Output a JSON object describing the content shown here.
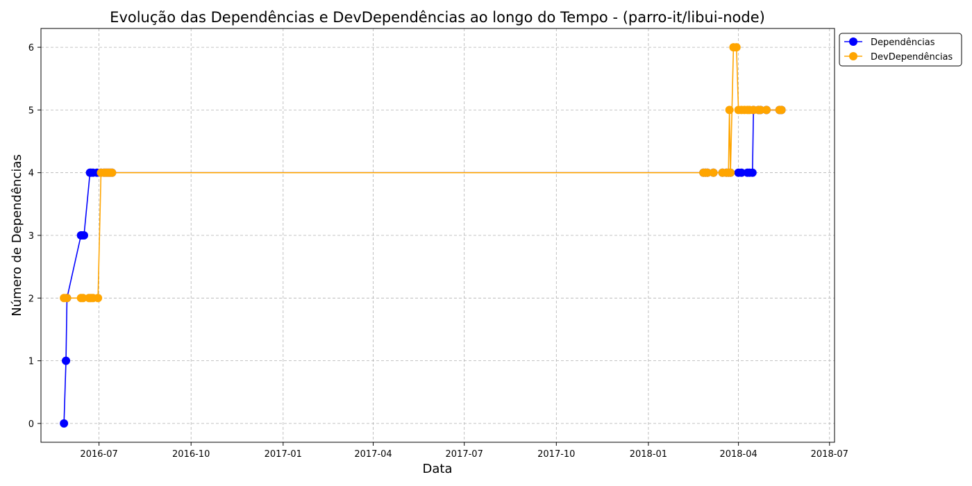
{
  "chart_data": {
    "type": "line",
    "title": "Evolução das Dependências e DevDependências ao longo do Tempo - (parro-it/libui-node)",
    "xlabel": "Data",
    "ylabel": "Número de Dependências",
    "grid": true,
    "legend_position": "top-right-outside",
    "xlim": [
      "2016-05-04",
      "2018-07-06"
    ],
    "ylim": [
      -0.3,
      6.3
    ],
    "x_ticks": [
      "2016-07",
      "2016-10",
      "2017-01",
      "2017-04",
      "2017-07",
      "2017-10",
      "2018-01",
      "2018-04",
      "2018-07"
    ],
    "y_ticks": [
      0,
      1,
      2,
      3,
      4,
      5,
      6
    ],
    "series": [
      {
        "name": "Dependências",
        "color": "#0000ff",
        "points": [
          [
            "2016-05-27",
            0
          ],
          [
            "2016-05-29",
            1
          ],
          [
            "2016-05-30",
            2
          ],
          [
            "2016-06-13",
            3
          ],
          [
            "2016-06-14",
            3
          ],
          [
            "2016-06-16",
            3
          ],
          [
            "2016-06-22",
            4
          ],
          [
            "2016-06-23",
            4
          ],
          [
            "2016-06-25",
            4
          ],
          [
            "2016-06-29",
            4
          ],
          [
            "2016-07-03",
            4
          ],
          [
            "2016-07-06",
            4
          ],
          [
            "2016-07-08",
            4
          ],
          [
            "2016-07-10",
            4
          ],
          [
            "2016-07-12",
            4
          ],
          [
            "2016-07-14",
            4
          ],
          [
            "2018-02-25",
            4
          ],
          [
            "2018-02-27",
            4
          ],
          [
            "2018-03-01",
            4
          ],
          [
            "2018-03-07",
            4
          ],
          [
            "2018-03-16",
            4
          ],
          [
            "2018-03-20",
            4
          ],
          [
            "2018-03-22",
            4
          ],
          [
            "2018-03-24",
            4
          ],
          [
            "2018-04-01",
            4
          ],
          [
            "2018-04-04",
            4
          ],
          [
            "2018-04-10",
            4
          ],
          [
            "2018-04-12",
            4
          ],
          [
            "2018-04-15",
            4
          ],
          [
            "2018-04-16",
            5
          ],
          [
            "2018-04-21",
            5
          ],
          [
            "2018-04-23",
            5
          ],
          [
            "2018-04-29",
            5
          ],
          [
            "2018-05-12",
            5
          ],
          [
            "2018-05-14",
            5
          ]
        ]
      },
      {
        "name": "DevDependências",
        "color": "#ffa500",
        "points": [
          [
            "2016-05-27",
            2
          ],
          [
            "2016-05-30",
            2
          ],
          [
            "2016-06-13",
            2
          ],
          [
            "2016-06-15",
            2
          ],
          [
            "2016-06-21",
            2
          ],
          [
            "2016-06-23",
            2
          ],
          [
            "2016-06-25",
            2
          ],
          [
            "2016-06-30",
            2
          ],
          [
            "2016-07-03",
            4
          ],
          [
            "2016-07-06",
            4
          ],
          [
            "2016-07-08",
            4
          ],
          [
            "2016-07-10",
            4
          ],
          [
            "2016-07-12",
            4
          ],
          [
            "2016-07-14",
            4
          ],
          [
            "2018-02-25",
            4
          ],
          [
            "2018-02-27",
            4
          ],
          [
            "2018-03-01",
            4
          ],
          [
            "2018-03-07",
            4
          ],
          [
            "2018-03-16",
            4
          ],
          [
            "2018-03-20",
            4
          ],
          [
            "2018-03-22",
            4
          ],
          [
            "2018-03-23",
            5
          ],
          [
            "2018-03-24",
            4
          ],
          [
            "2018-03-27",
            6
          ],
          [
            "2018-03-30",
            6
          ],
          [
            "2018-04-01",
            5
          ],
          [
            "2018-04-04",
            5
          ],
          [
            "2018-04-07",
            5
          ],
          [
            "2018-04-10",
            5
          ],
          [
            "2018-04-12",
            5
          ],
          [
            "2018-04-16",
            5
          ],
          [
            "2018-04-21",
            5
          ],
          [
            "2018-04-23",
            5
          ],
          [
            "2018-04-29",
            5
          ],
          [
            "2018-05-12",
            5
          ],
          [
            "2018-05-14",
            5
          ]
        ]
      }
    ]
  }
}
